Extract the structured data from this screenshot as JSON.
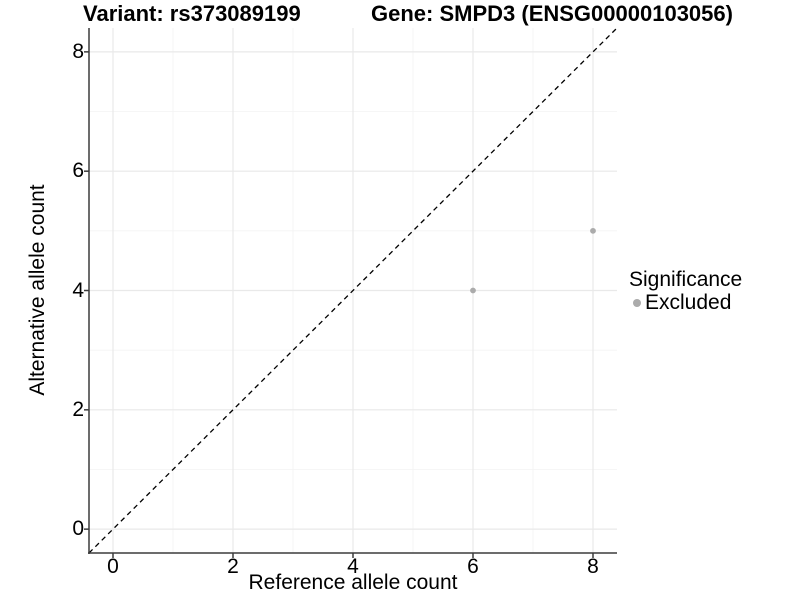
{
  "chart_data": {
    "type": "scatter",
    "title_left": "Variant: rs373089199",
    "title_right": "Gene: SMPD3 (ENSG00000103056)",
    "xlabel": "Reference allele count",
    "ylabel": "Alternative allele count",
    "xlim": [
      -0.4,
      8.4
    ],
    "ylim": [
      -0.4,
      8.4
    ],
    "xticks": [
      0,
      2,
      4,
      6,
      8
    ],
    "yticks": [
      0,
      2,
      4,
      6,
      8
    ],
    "xminor": [
      1,
      3,
      5,
      7
    ],
    "yminor": [
      1,
      3,
      5,
      7
    ],
    "grid": "major+minor",
    "points": [
      {
        "x": 6,
        "y": 4,
        "significance": "Excluded"
      },
      {
        "x": 8,
        "y": 5,
        "significance": "Excluded"
      }
    ],
    "identity_line": {
      "slope": 1,
      "intercept": 0,
      "style": "dashed",
      "color": "#000000"
    },
    "legend": {
      "title": "Significance",
      "position": "right",
      "items": [
        {
          "label": "Excluded",
          "color": "#ababab"
        }
      ]
    },
    "colors": {
      "point": "#ababab",
      "grid_major": "#e9e9e9",
      "grid_minor": "#f4f4f4",
      "axis": "#3c3c3c",
      "background": "#ffffff"
    }
  }
}
